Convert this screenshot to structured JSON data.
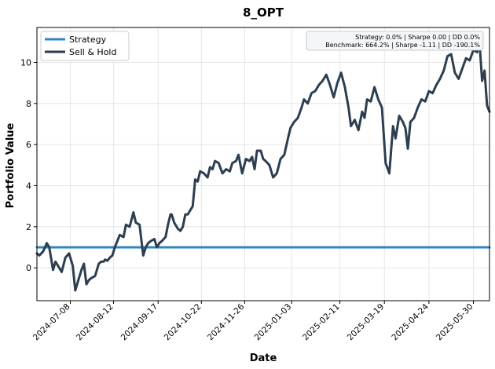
{
  "chart_data": {
    "type": "line",
    "title": "8_OPT",
    "xlabel": "Date",
    "ylabel": "Portfolio Value",
    "xlim": [
      "2024-06-11",
      "2025-06-12"
    ],
    "ylim": [
      -1.6,
      11.7
    ],
    "x_ticks": [
      "2024-07-08",
      "2024-08-12",
      "2024-09-17",
      "2024-10-22",
      "2024-11-26",
      "2025-01-03",
      "2025-02-11",
      "2025-03-19",
      "2025-04-24",
      "2025-05-30"
    ],
    "y_ticks": [
      0,
      2,
      4,
      6,
      8,
      10
    ],
    "grid": true,
    "legend_position": "top-left",
    "annotation": {
      "line1": "Strategy: 0.0% | Sharpe 0.00 | DD 0.0%",
      "line2": "Benchmark: 664.2% | Sharpe -1.11 | DD -190.1%"
    },
    "series": [
      {
        "name": "Strategy",
        "color": "#2e86c1",
        "x": [
          "2024-06-11",
          "2025-06-12"
        ],
        "y": [
          1.0,
          1.0
        ]
      },
      {
        "name": "Sell & Hold",
        "color": "#2c3e50",
        "x": [
          "2024-06-11",
          "2024-06-13",
          "2024-06-16",
          "2024-06-19",
          "2024-06-21",
          "2024-06-24",
          "2024-06-26",
          "2024-06-28",
          "2024-07-01",
          "2024-07-04",
          "2024-07-07",
          "2024-07-10",
          "2024-07-12",
          "2024-07-15",
          "2024-07-17",
          "2024-07-19",
          "2024-07-21",
          "2024-07-23",
          "2024-07-25",
          "2024-07-28",
          "2024-07-31",
          "2024-08-02",
          "2024-08-04",
          "2024-08-05",
          "2024-08-07",
          "2024-08-09",
          "2024-08-11",
          "2024-08-13",
          "2024-08-15",
          "2024-08-17",
          "2024-08-20",
          "2024-08-22",
          "2024-08-25",
          "2024-08-28",
          "2024-08-30",
          "2024-09-02",
          "2024-09-05",
          "2024-09-07",
          "2024-09-09",
          "2024-09-11",
          "2024-09-14",
          "2024-09-16",
          "2024-09-18",
          "2024-09-20",
          "2024-09-23",
          "2024-09-25",
          "2024-09-27",
          "2024-09-28",
          "2024-09-30",
          "2024-10-03",
          "2024-10-05",
          "2024-10-07",
          "2024-10-09",
          "2024-10-11",
          "2024-10-13",
          "2024-10-15",
          "2024-10-17",
          "2024-10-19",
          "2024-10-21",
          "2024-10-24",
          "2024-10-27",
          "2024-10-29",
          "2024-10-31",
          "2024-11-02",
          "2024-11-05",
          "2024-11-08",
          "2024-11-11",
          "2024-11-14",
          "2024-11-16",
          "2024-11-19",
          "2024-11-21",
          "2024-11-24",
          "2024-11-27",
          "2024-11-30",
          "2024-12-02",
          "2024-12-04",
          "2024-12-06",
          "2024-12-09",
          "2024-12-11",
          "2024-12-13",
          "2024-12-16",
          "2024-12-19",
          "2024-12-22",
          "2024-12-25",
          "2024-12-28",
          "2024-12-31",
          "2025-01-02",
          "2025-01-05",
          "2025-01-08",
          "2025-01-11",
          "2025-01-13",
          "2025-01-16",
          "2025-01-19",
          "2025-01-22",
          "2025-01-25",
          "2025-01-28",
          "2025-01-31",
          "2025-02-03",
          "2025-02-06",
          "2025-02-09",
          "2025-02-12",
          "2025-02-15",
          "2025-02-18",
          "2025-02-20",
          "2025-02-23",
          "2025-02-26",
          "2025-03-01",
          "2025-03-03",
          "2025-03-05",
          "2025-03-08",
          "2025-03-11",
          "2025-03-14",
          "2025-03-17",
          "2025-03-20",
          "2025-03-23",
          "2025-03-26",
          "2025-03-28",
          "2025-03-31",
          "2025-04-03",
          "2025-04-05",
          "2025-04-07",
          "2025-04-09",
          "2025-04-12",
          "2025-04-15",
          "2025-04-18",
          "2025-04-21",
          "2025-04-24",
          "2025-04-27",
          "2025-04-30",
          "2025-05-03",
          "2025-05-06",
          "2025-05-09",
          "2025-05-12",
          "2025-05-15",
          "2025-05-18",
          "2025-05-21",
          "2025-05-24",
          "2025-05-27",
          "2025-05-30",
          "2025-06-02",
          "2025-06-04",
          "2025-06-06",
          "2025-06-08",
          "2025-06-10",
          "2025-06-12"
        ],
        "y": [
          0.7,
          0.6,
          0.8,
          1.2,
          1.0,
          -0.1,
          0.3,
          0.1,
          -0.2,
          0.5,
          0.7,
          0.1,
          -1.1,
          -0.5,
          -0.1,
          0.2,
          -0.8,
          -0.6,
          -0.5,
          -0.4,
          0.2,
          0.3,
          0.3,
          0.4,
          0.35,
          0.5,
          0.6,
          1.0,
          1.3,
          1.6,
          1.5,
          2.1,
          2.0,
          2.7,
          2.2,
          2.1,
          0.6,
          1.0,
          1.2,
          1.3,
          1.4,
          1.0,
          1.2,
          1.3,
          1.5,
          2.1,
          2.6,
          2.6,
          2.2,
          1.9,
          1.8,
          2.0,
          2.6,
          2.6,
          2.8,
          3.0,
          4.3,
          4.2,
          4.7,
          4.6,
          4.4,
          4.9,
          4.8,
          5.2,
          5.1,
          4.6,
          4.8,
          4.7,
          5.1,
          5.2,
          5.5,
          4.6,
          5.3,
          5.2,
          5.4,
          4.8,
          5.7,
          5.7,
          5.3,
          5.2,
          5.0,
          4.4,
          4.6,
          5.3,
          5.5,
          6.3,
          6.8,
          7.1,
          7.3,
          7.8,
          8.2,
          8.0,
          8.5,
          8.6,
          8.9,
          9.1,
          9.4,
          8.9,
          8.3,
          9.0,
          9.5,
          8.8,
          7.8,
          6.9,
          7.2,
          6.7,
          7.6,
          7.3,
          8.2,
          8.1,
          8.8,
          8.2,
          7.8,
          5.1,
          4.6,
          6.9,
          6.3,
          7.4,
          7.1,
          6.8,
          5.8,
          7.1,
          7.3,
          7.8,
          8.2,
          8.1,
          8.6,
          8.5,
          8.9,
          9.2,
          9.6,
          10.3,
          10.4,
          9.5,
          9.2,
          9.7,
          10.2,
          10.1,
          10.6,
          10.5,
          10.9,
          9.1,
          9.6,
          7.9,
          7.6
        ]
      }
    ]
  }
}
